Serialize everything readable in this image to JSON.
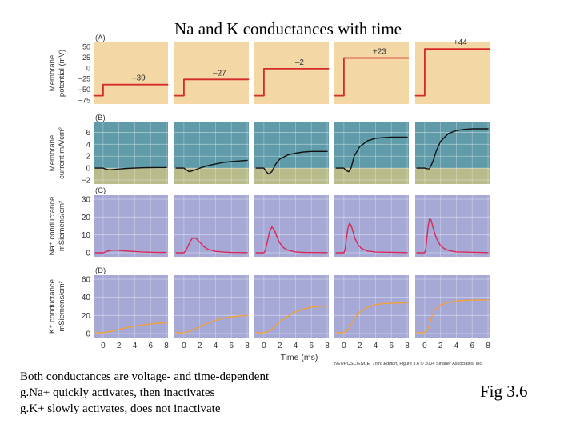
{
  "title": "Na and K conductances with time",
  "caption": [
    "Both conductances are voltage- and time-dependent",
    "g.Na+ quickly activates, then inactivates",
    "g.K+ slowly activates, does not inactivate"
  ],
  "fig_label": "Fig 3.6",
  "credit": {
    "book": "NEUROSCIENCE, Third Edition,",
    "rest": "Figure 3.6 © 2004 Sinauer Associates, Inc."
  },
  "colors": {
    "panel_a_bg": "#f3d7a4",
    "panel_b_bg_top": "#5f9ba8",
    "panel_b_bg_bottom": "#b9bb8a",
    "panel_cd_bg": "#a6a9d6",
    "voltage_trace": "#d42a2a",
    "current_trace": "#111111",
    "na_trace": "#d8285a",
    "k_trace": "#f0a03c"
  },
  "chart_data": [
    {
      "type": "line",
      "panel": "(A)",
      "ylabel": "Membrane potential (mV)",
      "ylim": [
        -75,
        50
      ],
      "yticks": [
        50,
        25,
        0,
        -25,
        -50,
        -75
      ],
      "xlim": [
        0,
        8
      ],
      "holding_potential_mV": -65,
      "step_onset_ms": 0,
      "step_levels_mV": [
        -39,
        -27,
        -2,
        23,
        44
      ],
      "step_labels": [
        "–39",
        "–27",
        "–2",
        "+23",
        "+44"
      ]
    },
    {
      "type": "line",
      "panel": "(B)",
      "ylabel": "Membrane current mA/cm²",
      "ylim": [
        -2,
        7
      ],
      "yticks": [
        6,
        4,
        2,
        0,
        -2
      ],
      "xlim": [
        0,
        8
      ],
      "series": [
        {
          "x": [
            -1,
            0,
            0.3,
            0.7,
            1.2,
            2,
            3,
            4,
            5,
            6,
            7,
            8
          ],
          "y": [
            0,
            0,
            -0.15,
            -0.3,
            -0.25,
            -0.15,
            -0.05,
            0,
            0.05,
            0.08,
            0.1,
            0.1
          ]
        },
        {
          "x": [
            -1,
            0,
            0.3,
            0.7,
            1.2,
            2,
            3,
            4,
            5,
            6,
            7,
            8
          ],
          "y": [
            0,
            0,
            -0.3,
            -0.6,
            -0.4,
            0,
            0.4,
            0.7,
            0.95,
            1.1,
            1.2,
            1.3
          ]
        },
        {
          "x": [
            -1,
            0,
            0.3,
            0.6,
            1,
            1.5,
            2,
            3,
            4,
            5,
            6,
            7,
            8
          ],
          "y": [
            0,
            0,
            -0.6,
            -1.0,
            -0.6,
            0.7,
            1.5,
            2.2,
            2.5,
            2.7,
            2.8,
            2.8,
            2.8
          ]
        },
        {
          "x": [
            -1,
            0,
            0.3,
            0.6,
            0.9,
            1.3,
            2,
            3,
            4,
            5,
            6,
            7,
            8
          ],
          "y": [
            0,
            0,
            -0.4,
            -0.6,
            0,
            2.0,
            3.6,
            4.6,
            5.0,
            5.1,
            5.2,
            5.2,
            5.2
          ]
        },
        {
          "x": [
            -1,
            0,
            0.3,
            0.6,
            1,
            1.5,
            2,
            3,
            4,
            5,
            6,
            7,
            8
          ],
          "y": [
            0,
            0,
            -0.1,
            -0.1,
            1.0,
            3.0,
            4.5,
            5.8,
            6.3,
            6.5,
            6.6,
            6.6,
            6.6
          ]
        }
      ]
    },
    {
      "type": "line",
      "panel": "(C)",
      "ylabel": "Na⁺ conductance mSiemens/cm²",
      "ylim": [
        0,
        30
      ],
      "yticks": [
        30,
        20,
        10,
        0
      ],
      "xlim": [
        0,
        8
      ],
      "series": [
        {
          "x": [
            -1,
            0,
            0.5,
            1,
            1.5,
            2,
            3,
            4,
            5,
            6,
            7,
            8
          ],
          "y": [
            0,
            0,
            0.8,
            1.4,
            1.5,
            1.3,
            1.0,
            0.7,
            0.4,
            0.3,
            0.2,
            0.2
          ]
        },
        {
          "x": [
            -1,
            0,
            0.3,
            0.6,
            1,
            1.3,
            1.6,
            2,
            2.5,
            3,
            4,
            5,
            6,
            8
          ],
          "y": [
            0,
            0,
            1.5,
            4.5,
            7.8,
            8.5,
            7.8,
            6.0,
            3.6,
            2.0,
            0.8,
            0.4,
            0.2,
            0.1
          ]
        },
        {
          "x": [
            -1,
            0,
            0.2,
            0.4,
            0.7,
            1.0,
            1.3,
            1.6,
            2,
            2.5,
            3,
            4,
            5,
            8
          ],
          "y": [
            0,
            0,
            1.5,
            5.5,
            11.5,
            14.5,
            13.0,
            9.5,
            5.5,
            2.8,
            1.5,
            0.5,
            0.2,
            0.1
          ]
        },
        {
          "x": [
            -1,
            0,
            0.15,
            0.3,
            0.5,
            0.7,
            0.9,
            1.1,
            1.4,
            1.8,
            2.2,
            3,
            4,
            8
          ],
          "y": [
            0,
            0,
            2.0,
            7.0,
            13.5,
            16.5,
            15.5,
            12.5,
            8.0,
            4.5,
            2.5,
            1.0,
            0.4,
            0.1
          ]
        },
        {
          "x": [
            -1,
            0,
            0.15,
            0.3,
            0.45,
            0.6,
            0.8,
            1.0,
            1.3,
            1.6,
            2,
            2.5,
            3,
            4,
            8
          ],
          "y": [
            0,
            0,
            2.5,
            9.0,
            15.0,
            19.0,
            18.5,
            15.0,
            10.5,
            7.0,
            4.0,
            2.3,
            1.3,
            0.5,
            0.1
          ]
        }
      ]
    },
    {
      "type": "line",
      "panel": "(D)",
      "ylabel": "K⁺ conductance mSiemens/cm²",
      "ylim": [
        0,
        60
      ],
      "yticks": [
        60,
        40,
        20,
        0
      ],
      "xlim": [
        0,
        8
      ],
      "xlabel": "Time (ms)",
      "xticks": [
        0,
        2,
        4,
        6,
        8
      ],
      "series": [
        {
          "x": [
            -1,
            0,
            1,
            2,
            3,
            4,
            5,
            6,
            7,
            8
          ],
          "y": [
            1,
            1,
            2.5,
            4.5,
            6.5,
            8.2,
            9.5,
            10.7,
            11.5,
            12.0
          ]
        },
        {
          "x": [
            -1,
            0,
            0.5,
            1,
            2,
            3,
            4,
            5,
            6,
            7,
            8
          ],
          "y": [
            1,
            1,
            2,
            3.5,
            7.5,
            11.5,
            14.5,
            17,
            18.5,
            19.5,
            20
          ]
        },
        {
          "x": [
            -1,
            0,
            0.5,
            1,
            1.5,
            2,
            3,
            4,
            5,
            6,
            7,
            8
          ],
          "y": [
            1,
            1,
            2,
            5,
            9,
            13,
            19,
            24,
            27,
            29,
            30,
            30.5
          ]
        },
        {
          "x": [
            -1,
            0,
            0.4,
            0.8,
            1.2,
            1.6,
            2,
            3,
            4,
            5,
            6,
            7,
            8
          ],
          "y": [
            1,
            1,
            3,
            8,
            15,
            20,
            24,
            29,
            32,
            33,
            33.5,
            33.8,
            34
          ]
        },
        {
          "x": [
            -1,
            0,
            0.3,
            0.6,
            0.9,
            1.2,
            1.6,
            2,
            3,
            4,
            5,
            6,
            7,
            8
          ],
          "y": [
            1,
            1,
            3,
            10,
            19,
            25,
            29,
            31.5,
            34.5,
            36,
            36.5,
            37,
            37,
            37
          ]
        }
      ]
    }
  ]
}
